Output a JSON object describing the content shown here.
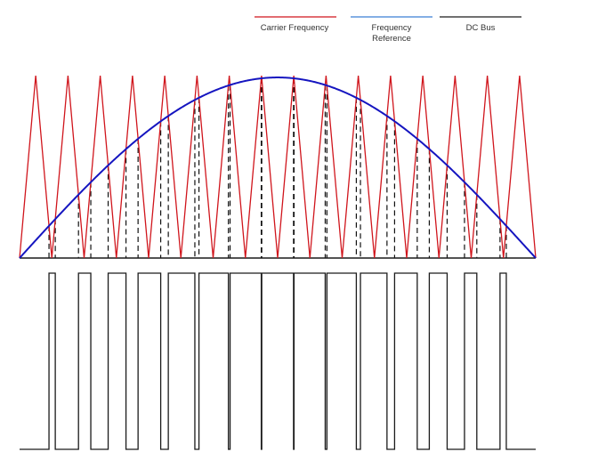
{
  "legend": {
    "carrier_label": "Carrier Frequency",
    "reference_label_line1": "Frequency",
    "reference_label_line2": "Reference",
    "dcbus_label": "DC Bus"
  },
  "colors": {
    "carrier": "#d0151c",
    "reference": "#1515c0",
    "dcbus": "#1a1a1a",
    "legend_reference": "#3a7fd5",
    "crossing_marker": "#111111",
    "background": "#ffffff"
  },
  "waveform": {
    "carrier_triangle_count": 16,
    "reference_peak_fraction": 0.99,
    "description": "PWM"
  }
}
